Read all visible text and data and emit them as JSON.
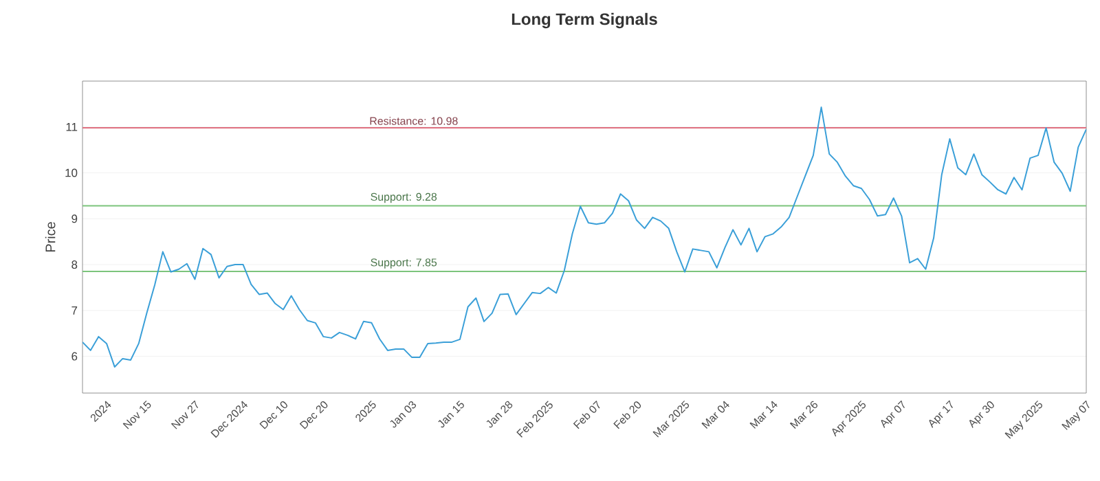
{
  "chart_data": {
    "type": "line",
    "title": "Long Term Signals",
    "ylabel": "Price",
    "categories": [
      null,
      null,
      null,
      "2024",
      null,
      null,
      null,
      null,
      "Nov 15",
      null,
      null,
      null,
      null,
      null,
      "Nov 27",
      null,
      null,
      null,
      null,
      null,
      "Dec 2024",
      null,
      null,
      null,
      null,
      "Dec 10",
      null,
      null,
      null,
      null,
      "Dec 20",
      null,
      null,
      null,
      null,
      null,
      "2025",
      null,
      null,
      null,
      null,
      "Jan 03",
      null,
      null,
      null,
      null,
      null,
      "Jan 15",
      null,
      null,
      null,
      null,
      null,
      "Jan 28",
      null,
      null,
      null,
      null,
      "Feb 2025",
      null,
      null,
      null,
      null,
      null,
      "Feb 07",
      null,
      null,
      null,
      null,
      "Feb 20",
      null,
      null,
      null,
      null,
      null,
      "Mar 2025",
      null,
      null,
      null,
      null,
      "Mar 04",
      null,
      null,
      null,
      null,
      null,
      "Mar 14",
      null,
      null,
      null,
      null,
      "Mar 26",
      null,
      null,
      null,
      null,
      null,
      "Apr 2025",
      null,
      null,
      null,
      null,
      "Apr 07",
      null,
      null,
      null,
      null,
      null,
      "Apr 17",
      null,
      null,
      null,
      null,
      "Apr 30",
      null,
      null,
      null,
      null,
      null,
      "May 2025",
      null,
      null,
      null,
      null,
      null,
      "May 07"
    ],
    "values": [
      6.31,
      6.13,
      6.43,
      6.28,
      5.77,
      5.95,
      5.92,
      6.28,
      6.94,
      7.56,
      8.28,
      7.84,
      7.9,
      8.02,
      7.68,
      8.35,
      8.22,
      7.71,
      7.96,
      8.0,
      8.0,
      7.57,
      7.35,
      7.38,
      7.15,
      7.02,
      7.32,
      7.02,
      6.78,
      6.73,
      6.43,
      6.4,
      6.52,
      6.46,
      6.38,
      6.76,
      6.73,
      6.38,
      6.13,
      6.16,
      6.16,
      5.98,
      5.98,
      6.28,
      6.29,
      6.31,
      6.31,
      6.37,
      7.08,
      7.27,
      6.76,
      6.94,
      7.35,
      7.36,
      6.91,
      7.15,
      7.39,
      7.37,
      7.5,
      7.38,
      7.87,
      8.67,
      9.27,
      8.91,
      8.88,
      8.91,
      9.12,
      9.54,
      9.39,
      8.97,
      8.79,
      9.03,
      8.95,
      8.79,
      8.28,
      7.84,
      8.34,
      8.31,
      8.28,
      7.93,
      8.37,
      8.76,
      8.43,
      8.79,
      8.28,
      8.61,
      8.67,
      8.82,
      9.03,
      9.48,
      9.93,
      10.38,
      11.43,
      10.41,
      10.23,
      9.93,
      9.72,
      9.66,
      9.42,
      9.06,
      9.09,
      9.45,
      9.06,
      8.04,
      8.13,
      7.9,
      8.58,
      9.96,
      10.74,
      10.11,
      9.96,
      10.41,
      9.96,
      9.8,
      9.63,
      9.54,
      9.9,
      9.63,
      10.32,
      10.38,
      10.98,
      10.23,
      9.99,
      9.6,
      10.56,
      10.95
    ],
    "color": "#3a9fd8",
    "ylim": [
      5.2,
      12
    ],
    "yticks": [
      6,
      7,
      8,
      9,
      10,
      11
    ],
    "grid": "y",
    "ref_lines": [
      {
        "axis": "y",
        "value": 10.98,
        "label": "Resistance: 10.98",
        "color": "#e07080"
      },
      {
        "axis": "y",
        "value": 9.28,
        "label": "Support: 9.28",
        "color": "#7cc47c"
      },
      {
        "axis": "y",
        "value": 7.85,
        "label": "Support: 7.85",
        "color": "#7cc47c"
      }
    ]
  }
}
